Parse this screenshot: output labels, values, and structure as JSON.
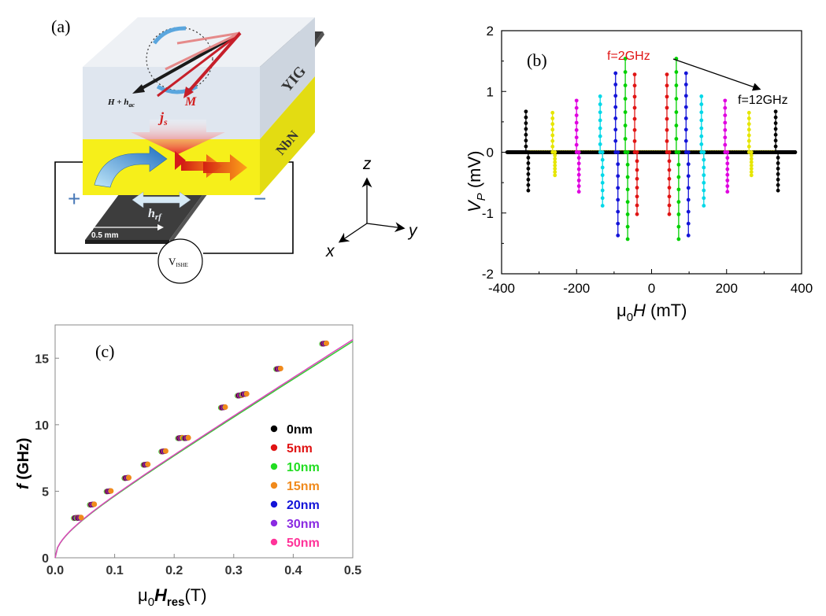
{
  "panel_a": {
    "label": "(a)",
    "yig_label": "YIG",
    "nbn_label": "NbN",
    "field_label": "H + h",
    "field_sub": "ac",
    "m_label": "M",
    "js_label": "j",
    "js_sub": "s",
    "hrf_label": "h",
    "hrf_sub": "rf",
    "width_label": "0.5 mm",
    "plus": "+",
    "minus": "−",
    "volt_label": "V",
    "volt_sub": "ISHE",
    "axis_z": "z",
    "axis_y": "y",
    "axis_x": "x",
    "colors": {
      "yig": "#dfe5ee",
      "nbn": "#f4ef1c",
      "stripline": "#3a3a3a",
      "m_arrow": "#d62a2a",
      "spin_blue": "#3f8fd6",
      "spin_red": "#e83a1c"
    }
  },
  "chart_data": [
    {
      "panel": "(b)",
      "type": "scatter",
      "xlabel_pre": "μ",
      "xlabel_sub": "0",
      "xlabel_var": "H",
      "xlabel_unit": " (mT)",
      "ylabel_var": "V",
      "ylabel_sub": "P",
      "ylabel_unit": " (mV)",
      "xlim": [
        -400,
        400
      ],
      "ylim": [
        -2,
        2
      ],
      "xticks": [
        "-400",
        "-200",
        "0",
        "200",
        "400"
      ],
      "yticks": [
        "2",
        "1",
        "0",
        "-1",
        "-2"
      ],
      "annotation_low": "f=2GHz",
      "annotation_high": "f=12GHz",
      "series": [
        {
          "color": "#000000",
          "pos": [
            -333,
            333
          ],
          "peak": 0.67,
          "trough": -0.63
        },
        {
          "color": "#e6e600",
          "pos": [
            -262,
            262
          ],
          "peak": 0.65,
          "trough": -0.38
        },
        {
          "color": "#e000e0",
          "pos": [
            -198,
            198
          ],
          "peak": 0.85,
          "trough": -0.65
        },
        {
          "color": "#00d8e8",
          "pos": [
            -135,
            135
          ],
          "peak": 0.92,
          "trough": -0.88
        },
        {
          "color": "#1414d8",
          "pos": [
            -94,
            94
          ],
          "peak": 1.3,
          "trough": -1.37
        },
        {
          "color": "#00d000",
          "pos": [
            -68,
            68
          ],
          "peak": 1.54,
          "trough": -1.43
        },
        {
          "color": "#e01414",
          "pos": [
            -43,
            43
          ],
          "peak": 1.28,
          "trough": -1.02
        }
      ]
    },
    {
      "panel": "(c)",
      "type": "scatter",
      "xlabel_pre": "μ",
      "xlabel_sub": "0",
      "xlabel_var": "H",
      "xlabel_varsub": "res",
      "xlabel_unit": "(T)",
      "ylabel_var": "f",
      "ylabel_unit": " (GHz)",
      "xlim": [
        0,
        0.5
      ],
      "ylim": [
        0,
        17.5
      ],
      "xticks": [
        "0.0",
        "0.1",
        "0.2",
        "0.3",
        "0.4",
        "0.5"
      ],
      "yticks": [
        "0",
        "5",
        "10",
        "15"
      ],
      "legend": [
        {
          "name": "0nm",
          "color": "#000000"
        },
        {
          "name": "5nm",
          "color": "#e01414"
        },
        {
          "name": "10nm",
          "color": "#22dd22"
        },
        {
          "name": "15nm",
          "color": "#f08a1c"
        },
        {
          "name": "20nm",
          "color": "#1414d8"
        },
        {
          "name": "30nm",
          "color": "#8a2be2"
        },
        {
          "name": "50nm",
          "color": "#ff3399"
        }
      ],
      "points_x": [
        0.035,
        0.04,
        0.062,
        0.09,
        0.12,
        0.152,
        0.182,
        0.21,
        0.22,
        0.282,
        0.31,
        0.318,
        0.375,
        0.452
      ],
      "points_y": [
        3.0,
        3.0,
        4.0,
        5.0,
        6.0,
        7.0,
        8.0,
        9.0,
        9.0,
        11.3,
        12.2,
        12.3,
        14.2,
        16.1
      ],
      "fit_color": "#dd44bb",
      "fit_color2": "#33cc33"
    }
  ]
}
